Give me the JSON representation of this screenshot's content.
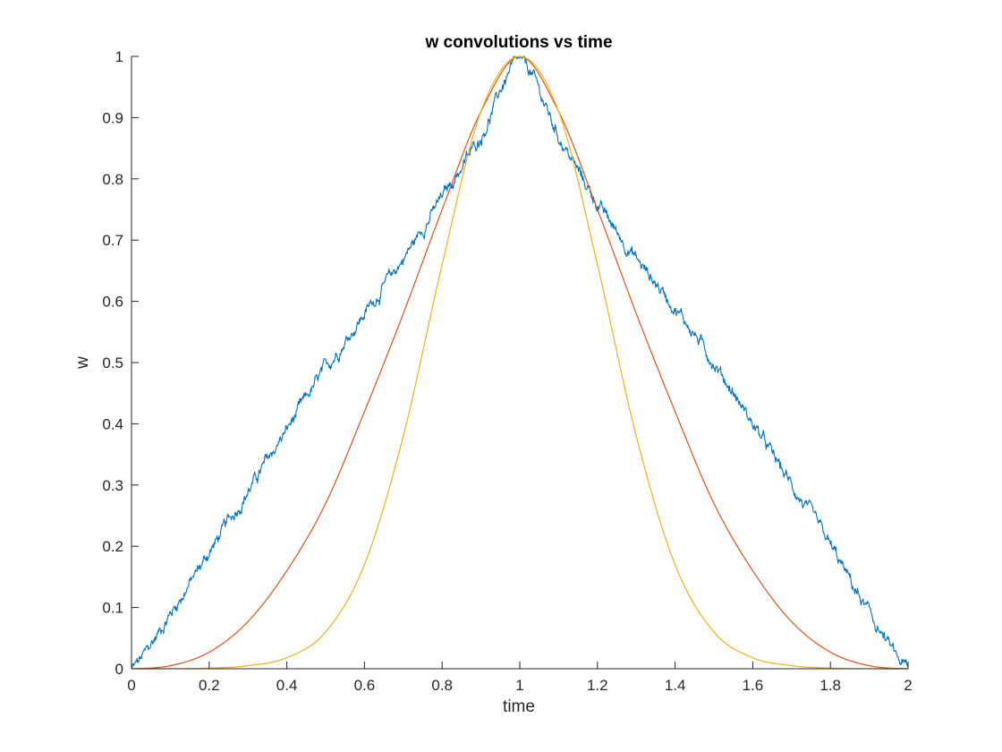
{
  "chart_data": {
    "type": "line",
    "title": "w convolutions vs time",
    "xlabel": "time",
    "ylabel": "w",
    "xlim": [
      0,
      2
    ],
    "ylim": [
      0,
      1
    ],
    "xticks": [
      "0",
      "0.2",
      "0.4",
      "0.6",
      "0.8",
      "1",
      "1.2",
      "1.4",
      "1.6",
      "1.8",
      "2"
    ],
    "yticks": [
      "0",
      "0.1",
      "0.2",
      "0.3",
      "0.4",
      "0.5",
      "0.6",
      "0.7",
      "0.8",
      "0.9",
      "1"
    ],
    "grid": false,
    "legend": "none",
    "series": [
      {
        "color": "#0072BD",
        "x": [
          0,
          0.1,
          0.2,
          0.3,
          0.4,
          0.5,
          0.6,
          0.7,
          0.8,
          0.9,
          1.0,
          1.1,
          1.2,
          1.3,
          1.4,
          1.5,
          1.6,
          1.7,
          1.8,
          1.9,
          2.0
        ],
        "values": [
          0,
          0.09,
          0.19,
          0.29,
          0.39,
          0.49,
          0.58,
          0.67,
          0.77,
          0.87,
          0.99,
          0.87,
          0.76,
          0.67,
          0.59,
          0.5,
          0.4,
          0.3,
          0.2,
          0.09,
          0
        ]
      },
      {
        "color": "#D95319",
        "x": [
          0,
          0.1,
          0.2,
          0.3,
          0.4,
          0.5,
          0.6,
          0.7,
          0.8,
          0.9,
          1.0,
          1.1,
          1.2,
          1.3,
          1.4,
          1.5,
          1.6,
          1.7,
          1.8,
          1.9,
          2.0
        ],
        "values": [
          0,
          0.005,
          0.027,
          0.077,
          0.16,
          0.27,
          0.42,
          0.58,
          0.75,
          0.91,
          1.0,
          0.91,
          0.75,
          0.58,
          0.42,
          0.27,
          0.16,
          0.077,
          0.027,
          0.005,
          0
        ]
      },
      {
        "color": "#EDB120",
        "x": [
          0,
          0.1,
          0.2,
          0.3,
          0.4,
          0.5,
          0.6,
          0.7,
          0.8,
          0.9,
          1.0,
          1.1,
          1.2,
          1.3,
          1.4,
          1.5,
          1.6,
          1.7,
          1.8,
          1.9,
          2.0
        ],
        "values": [
          0,
          0.0001,
          0.001,
          0.005,
          0.018,
          0.06,
          0.17,
          0.38,
          0.66,
          0.91,
          1.0,
          0.91,
          0.66,
          0.38,
          0.17,
          0.06,
          0.018,
          0.005,
          0.001,
          0.0001,
          0
        ]
      }
    ]
  }
}
